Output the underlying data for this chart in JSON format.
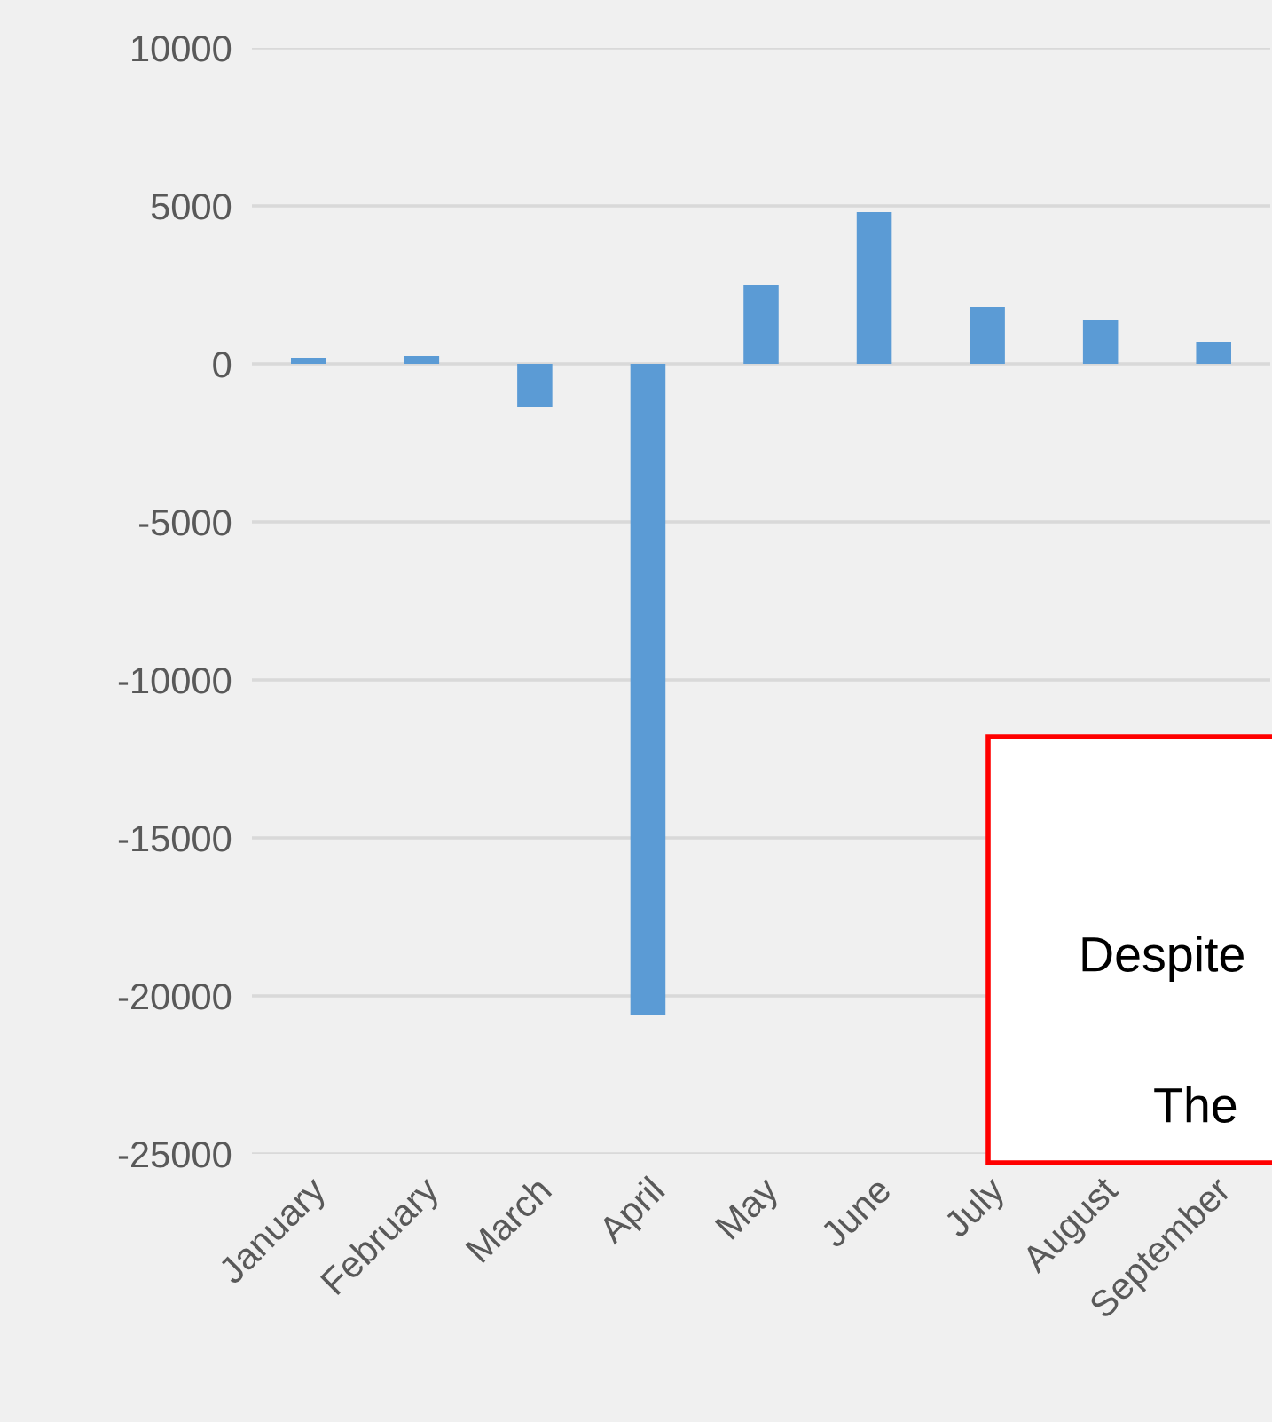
{
  "chart_data": {
    "type": "bar",
    "categories": [
      "January",
      "February",
      "March",
      "April",
      "May",
      "June",
      "July",
      "August",
      "September"
    ],
    "series": [
      {
        "color": "#5b9bd5",
        "values": [
          200,
          250,
          -1350,
          -20600,
          2500,
          4800,
          1800,
          1400,
          700
        ]
      }
    ],
    "ylim": [
      -25000,
      10000
    ],
    "yticks": [
      -25000,
      -20000,
      -15000,
      -10000,
      -5000,
      0,
      5000,
      10000
    ],
    "grid": "y",
    "legend": false,
    "annotations": [
      "Despite",
      "The"
    ]
  }
}
